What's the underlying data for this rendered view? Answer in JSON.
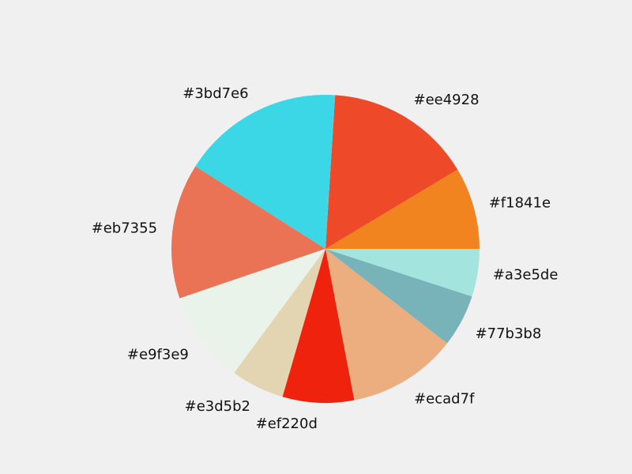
{
  "chart_data": {
    "type": "pie",
    "start_angle_deg": 0,
    "direction": "counterclockwise",
    "grid": false,
    "legend": "none",
    "slices": [
      {
        "label": "#f1841e",
        "color": "#f1841e",
        "value": 8.6
      },
      {
        "label": "#ee4928",
        "color": "#ee4928",
        "value": 15.4
      },
      {
        "label": "#3bd7e6",
        "color": "#3bd7e6",
        "value": 17.0
      },
      {
        "label": "#eb7355",
        "color": "#eb7355",
        "value": 14.2
      },
      {
        "label": "#e9f3e9",
        "color": "#e9f3e9",
        "value": 9.7
      },
      {
        "label": "#e3d5b2",
        "color": "#e3d5b2",
        "value": 5.6
      },
      {
        "label": "#ef220d",
        "color": "#ef220d",
        "value": 7.5
      },
      {
        "label": "#ecad7f",
        "color": "#ecad7f",
        "value": 11.5
      },
      {
        "label": "#77b3b8",
        "color": "#77b3b8",
        "value": 5.5
      },
      {
        "label": "#a3e5de",
        "color": "#a3e5de",
        "value": 5.0
      }
    ]
  }
}
